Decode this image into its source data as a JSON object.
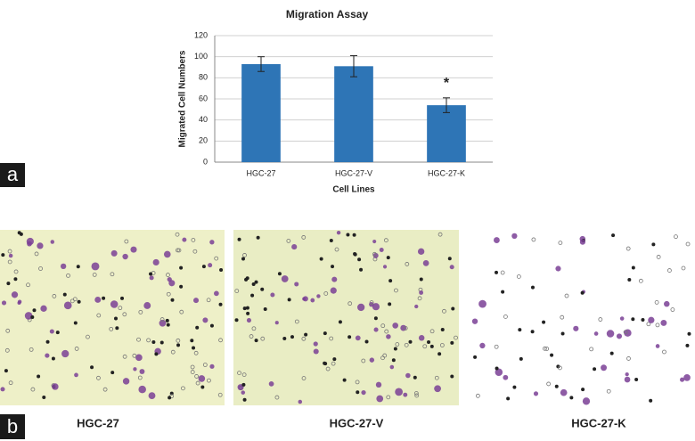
{
  "chart_data": {
    "type": "bar",
    "title": "Migration Assay",
    "x_label": "Cell Lines",
    "y_label": "Migrated Cell Numbers",
    "categories": [
      "HGC-27",
      "HGC-27-V",
      "HGC-27-K"
    ],
    "values": [
      93,
      91,
      54
    ],
    "errors": [
      7,
      10,
      7
    ],
    "color": "#2e75b6",
    "ylim": [
      0,
      120
    ],
    "yticks": [
      0,
      20,
      40,
      60,
      80,
      100,
      120
    ],
    "grid": true,
    "annotations": [
      {
        "text": "*",
        "category": "HGC-27-K"
      }
    ]
  },
  "panel_labels": [
    "a",
    "b"
  ],
  "micrograph_captions": [
    "HGC-27",
    "HGC-27-V",
    "HGC-27-K"
  ]
}
